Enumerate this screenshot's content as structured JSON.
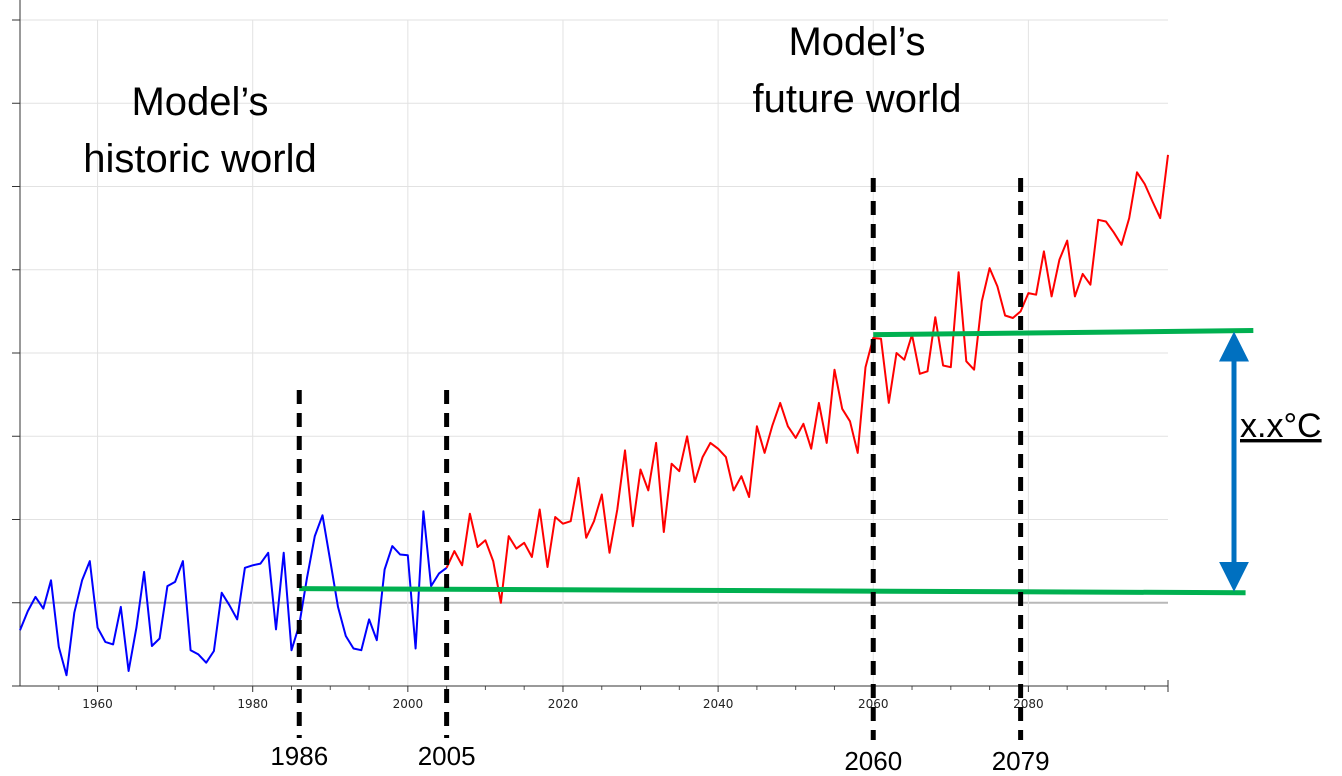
{
  "chart_data": {
    "type": "line",
    "xlim": [
      1950,
      2098
    ],
    "ylim": [
      -1,
      7
    ],
    "grid": true,
    "x_ticks": [
      1960,
      1980,
      2000,
      2020,
      2040,
      2060,
      2080
    ],
    "x_tick_labels": [
      "1960",
      "1980",
      "2000",
      "2020",
      "2040",
      "2060",
      "2080"
    ],
    "series": [
      {
        "name": "",
        "color": "#0000ff",
        "x": [
          1950,
          1951,
          1952,
          1953,
          1954,
          1955,
          1956,
          1957,
          1958,
          1959,
          1960,
          1961,
          1962,
          1963,
          1964,
          1965,
          1966,
          1967,
          1968,
          1969,
          1970,
          1971,
          1972,
          1973,
          1974,
          1975,
          1976,
          1977,
          1978,
          1979,
          1980,
          1981,
          1982,
          1983,
          1984,
          1985,
          1986,
          1987,
          1988,
          1989,
          1990,
          1991,
          1992,
          1993,
          1994,
          1995,
          1996,
          1997,
          1998,
          1999,
          2000,
          2001,
          2002,
          2003,
          2004,
          2005
        ],
        "values": [
          -0.33,
          -0.1,
          0.07,
          -0.07,
          0.27,
          -0.53,
          -0.87,
          -0.12,
          0.27,
          0.5,
          -0.3,
          -0.47,
          -0.5,
          -0.05,
          -0.82,
          -0.3,
          0.37,
          -0.52,
          -0.43,
          0.2,
          0.25,
          0.5,
          -0.57,
          -0.62,
          -0.72,
          -0.58,
          0.12,
          -0.03,
          -0.2,
          0.42,
          0.45,
          0.47,
          0.6,
          -0.32,
          0.6,
          -0.57,
          -0.27,
          0.3,
          0.8,
          1.05,
          0.5,
          -0.05,
          -0.4,
          -0.55,
          -0.57,
          -0.2,
          -0.45,
          0.4,
          0.68,
          0.58,
          0.57,
          -0.55,
          1.1,
          0.2,
          0.35,
          0.42
        ]
      },
      {
        "name": "",
        "color": "#ff0000",
        "x": [
          2005,
          2006,
          2007,
          2008,
          2009,
          2010,
          2011,
          2012,
          2013,
          2014,
          2015,
          2016,
          2017,
          2018,
          2019,
          2020,
          2021,
          2022,
          2023,
          2024,
          2025,
          2026,
          2027,
          2028,
          2029,
          2030,
          2031,
          2032,
          2033,
          2034,
          2035,
          2036,
          2037,
          2038,
          2039,
          2040,
          2041,
          2042,
          2043,
          2044,
          2045,
          2046,
          2047,
          2048,
          2049,
          2050,
          2051,
          2052,
          2053,
          2054,
          2055,
          2056,
          2057,
          2058,
          2059,
          2060,
          2061,
          2062,
          2063,
          2064,
          2065,
          2066,
          2067,
          2068,
          2069,
          2070,
          2071,
          2072,
          2073,
          2074,
          2075,
          2076,
          2077,
          2078,
          2079,
          2080,
          2081,
          2082,
          2083,
          2084,
          2085,
          2086,
          2087,
          2088,
          2089,
          2090,
          2091,
          2092,
          2093,
          2094,
          2095,
          2096,
          2097,
          2098
        ],
        "values": [
          0.42,
          0.62,
          0.45,
          1.07,
          0.67,
          0.75,
          0.5,
          0.0,
          0.8,
          0.65,
          0.72,
          0.55,
          1.12,
          0.43,
          1.03,
          0.95,
          0.98,
          1.5,
          0.78,
          0.98,
          1.3,
          0.6,
          1.12,
          1.83,
          0.92,
          1.6,
          1.35,
          1.92,
          0.85,
          1.67,
          1.58,
          2.0,
          1.45,
          1.75,
          1.92,
          1.85,
          1.75,
          1.35,
          1.52,
          1.27,
          2.12,
          1.8,
          2.13,
          2.4,
          2.12,
          1.98,
          2.15,
          1.85,
          2.4,
          1.92,
          2.8,
          2.33,
          2.18,
          1.8,
          2.83,
          3.18,
          3.17,
          2.4,
          3.0,
          2.92,
          3.22,
          2.75,
          2.78,
          3.43,
          2.85,
          2.83,
          3.97,
          2.9,
          2.8,
          3.62,
          4.02,
          3.8,
          3.45,
          3.42,
          3.5,
          3.72,
          3.7,
          4.22,
          3.68,
          4.12,
          4.35,
          3.68,
          3.95,
          3.82,
          4.6,
          4.58,
          4.45,
          4.3,
          4.62,
          5.17,
          5.03,
          4.82,
          4.62,
          5.38
        ]
      }
    ],
    "reference_lines": [
      {
        "name": "baseline",
        "color": "#00b050",
        "x": [
          1986,
          2108
        ],
        "values": [
          0.17,
          0.12
        ]
      },
      {
        "name": "future",
        "color": "#00b050",
        "x": [
          2060,
          2109
        ],
        "values": [
          3.22,
          3.27
        ]
      }
    ],
    "period_markers": [
      {
        "x": 1986,
        "label": "1986"
      },
      {
        "x": 2005,
        "label": "2005"
      },
      {
        "x": 2060,
        "label": "2060"
      },
      {
        "x": 2079,
        "label": "2079"
      }
    ],
    "annotations": {
      "historic_line1": "Model’s",
      "historic_line2": "historic world",
      "future_line1": "Model’s",
      "future_line2": "future world",
      "delta_label": "x.x°C"
    },
    "arrow_color": "#0070c0"
  }
}
